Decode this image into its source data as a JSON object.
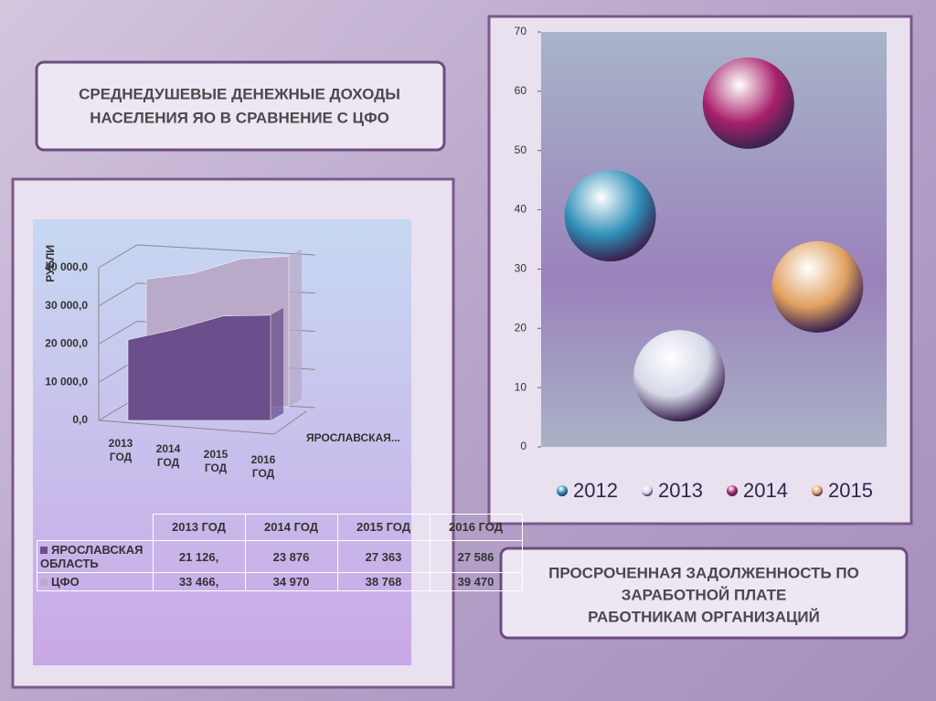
{
  "chart_data": [
    {
      "type": "area3d",
      "title_lines": [
        "СРЕДНЕДУШЕВЫЕ ДЕНЕЖНЫЕ ДОХОДЫ",
        "НАСЕЛЕНИЯ ЯО В СРАВНЕНИЕ С ЦФО"
      ],
      "y_label": "РУБЛИ",
      "categories": [
        "2013 ГОД",
        "2014 ГОД",
        "2015 ГОД",
        "2016 ГОД"
      ],
      "series": [
        {
          "name": "ЯРОСЛАВСКАЯ ОБЛАСТЬ",
          "short_name": "ЯРОСЛАВСКАЯ...",
          "color": "#6b4f8c",
          "values": [
            21126,
            23876,
            27363,
            27586
          ],
          "value_labels": [
            "21 126,",
            "23 876",
            "27 363",
            "27 586"
          ]
        },
        {
          "name": "ЦФО",
          "color": "#b8aac8",
          "values": [
            33466,
            34970,
            38768,
            39470
          ],
          "value_labels": [
            "33 466,",
            "34 970",
            "38 768",
            "39 470"
          ]
        }
      ],
      "ylim": [
        0,
        40000
      ],
      "yticks": [
        {
          "value": 0,
          "label": "0,0"
        },
        {
          "value": 10000,
          "label": "10 000,0"
        },
        {
          "value": 20000,
          "label": "20 000,0"
        },
        {
          "value": 30000,
          "label": "30 000,0"
        },
        {
          "value": 40000,
          "label": "40 000,0"
        }
      ]
    },
    {
      "type": "bubble",
      "title_lines": [
        "ПРОСРОЧЕННАЯ ЗАДОЛЖЕННОСТЬ ПО",
        "ЗАРАБОТНОЙ  ПЛАТЕ",
        "РАБОТНИКАМ ОРГАНИЗАЦИЙ"
      ],
      "series": [
        {
          "name": "2012",
          "color": "#2f8fb8",
          "x": [
            1
          ],
          "values": [
            39
          ]
        },
        {
          "name": "2013",
          "color": "#d6d8e8",
          "x": [
            2
          ],
          "values": [
            12
          ]
        },
        {
          "name": "2014",
          "color": "#a8206a",
          "x": [
            3
          ],
          "values": [
            58
          ]
        },
        {
          "name": "2015",
          "color": "#e0a060",
          "x": [
            4
          ],
          "values": [
            27
          ]
        }
      ],
      "xlim": [
        0,
        5
      ],
      "ylim": [
        0,
        70
      ],
      "yticks": [
        0,
        10,
        20,
        30,
        40,
        50,
        60,
        70
      ]
    }
  ]
}
